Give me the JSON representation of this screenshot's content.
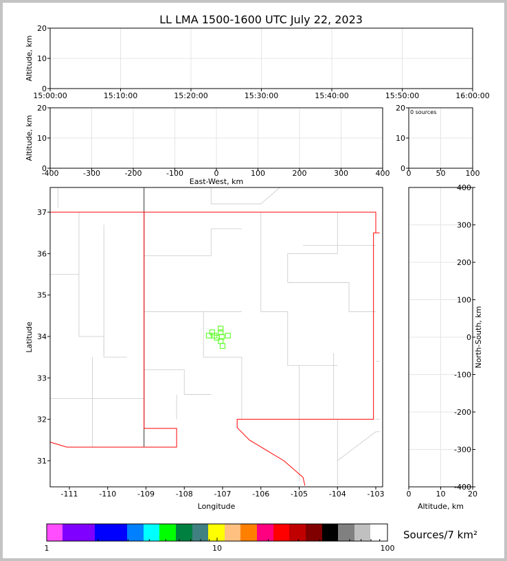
{
  "chart_data": [
    {
      "type": "scatter",
      "panel": "time-height",
      "title": "LL LMA 1500-1600 UTC July 22, 2023",
      "ylabel": "Altitude, km",
      "xticks": [
        "15:00:00",
        "15:10:00",
        "15:20:00",
        "15:30:00",
        "15:40:00",
        "15:50:00",
        "16:00:00"
      ],
      "yticks": [
        0,
        10,
        20
      ],
      "ylim": [
        0,
        20
      ],
      "grid": true,
      "points": []
    },
    {
      "type": "scatter",
      "panel": "east-west-altitude",
      "xlabel": "East-West, km",
      "ylabel": "Altitude, km",
      "xticks": [
        -400,
        -300,
        -200,
        -100,
        0,
        100,
        200,
        300,
        400
      ],
      "xlim": [
        -400,
        400
      ],
      "yticks": [
        0,
        10,
        20
      ],
      "ylim": [
        0,
        20
      ],
      "grid": true,
      "points": []
    },
    {
      "type": "bar",
      "panel": "altitude-histogram",
      "annotation": "0 sources",
      "xticks": [
        0,
        50,
        100
      ],
      "xlim": [
        0,
        100
      ],
      "yticks": [
        0,
        10,
        20
      ],
      "ylim": [
        0,
        20
      ]
    },
    {
      "type": "scatter",
      "panel": "plan-view",
      "xlabel": "Longitude",
      "ylabel": "Latitude",
      "xticks": [
        -111,
        -110,
        -109,
        -108,
        -107,
        -106,
        -105,
        -104,
        -103
      ],
      "xlim": [
        -111.5,
        -102.9
      ],
      "yticks": [
        31,
        32,
        33,
        34,
        35,
        36,
        37
      ],
      "ylim": [
        30.4,
        37.6
      ],
      "marker_color": "#66ff33",
      "marker": "square-open",
      "points": [
        {
          "lon": -107.05,
          "lat": 34.19
        },
        {
          "lon": -107.27,
          "lat": 34.1
        },
        {
          "lon": -107.05,
          "lat": 34.1
        },
        {
          "lon": -107.36,
          "lat": 34.02
        },
        {
          "lon": -107.21,
          "lat": 34.02
        },
        {
          "lon": -107.15,
          "lat": 33.97
        },
        {
          "lon": -107.02,
          "lat": 33.99
        },
        {
          "lon": -106.86,
          "lat": 34.02
        },
        {
          "lon": -107.05,
          "lat": 33.89
        },
        {
          "lon": -107.0,
          "lat": 33.77
        }
      ]
    },
    {
      "type": "scatter",
      "panel": "altitude-north-south",
      "xlabel": "Altitude, km",
      "ylabel": "North-South, km",
      "xticks": [
        0,
        10,
        20
      ],
      "xlim": [
        0,
        20
      ],
      "yticks": [
        -400,
        -300,
        -200,
        -100,
        0,
        100,
        200,
        300,
        400
      ],
      "ylim": [
        -400,
        400
      ],
      "grid": true,
      "points": []
    }
  ],
  "colorbar": {
    "label": "Sources/7 km²",
    "scale": "log",
    "ticks": [
      "1",
      "10",
      "100"
    ],
    "colors": [
      "#ff4dff",
      "#7f00ff",
      "#0000ff",
      "#0080ff",
      "#00ffff",
      "#00ff00",
      "#008040",
      "#408080",
      "#ffff00",
      "#ffc080",
      "#ff8000",
      "#ff0080",
      "#ff0000",
      "#c00000",
      "#800000",
      "#000000",
      "#808080",
      "#c0c0c0",
      "#ffffff"
    ]
  }
}
